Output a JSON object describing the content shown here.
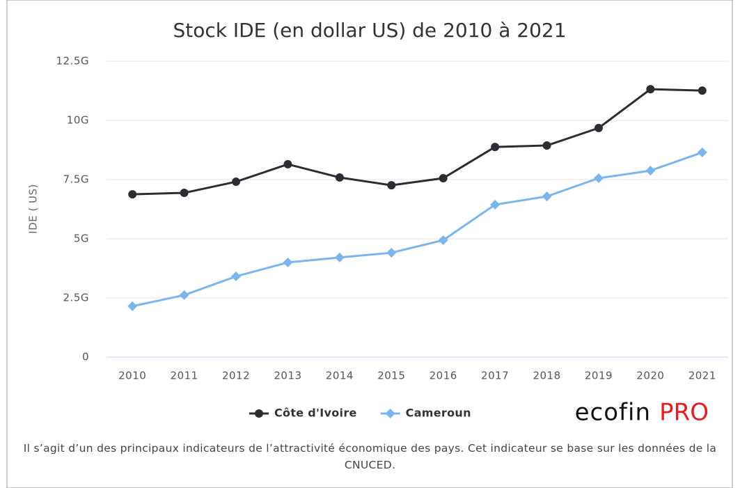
{
  "chart_data": {
    "type": "line",
    "title": "Stock IDE (en dollar US) de 2010 à 2021",
    "y_label": "IDE ( US)",
    "categories": [
      "2010",
      "2011",
      "2012",
      "2013",
      "2014",
      "2015",
      "2016",
      "2017",
      "2018",
      "2019",
      "2020",
      "2021"
    ],
    "series": [
      {
        "name": "Côte d'Ivoire",
        "color": "#2b2d33",
        "marker": "circle",
        "values": [
          6880000000,
          6940000000,
          7410000000,
          8150000000,
          7590000000,
          7260000000,
          7560000000,
          8880000000,
          8940000000,
          9680000000,
          11320000000,
          11260000000
        ]
      },
      {
        "name": "Cameroun",
        "color": "#7cb5ec",
        "marker": "diamond",
        "values": [
          2150000000,
          2620000000,
          3410000000,
          4000000000,
          4210000000,
          4410000000,
          4940000000,
          6440000000,
          6790000000,
          7560000000,
          7880000000,
          8650000000
        ]
      }
    ],
    "ylim": [
      0,
      12500000000
    ],
    "yticks": [
      0,
      {
        "value": 2500000000,
        "label": "2.5G"
      },
      {
        "value": 5000000000,
        "label": "5G"
      },
      {
        "value": 7500000000,
        "label": "7.5G"
      },
      {
        "value": 10000000000,
        "label": "10G"
      },
      {
        "value": 12500000000,
        "label": "12.5G"
      }
    ],
    "grid": true,
    "legend": "bottom"
  },
  "logo": {
    "brand": "ecofin",
    "suffix": "PRO"
  },
  "caption": "Il s’agit d’un des principaux indicateurs de l’attractivité économique des pays. Cet indicateur se base sur les données de la CNUCED."
}
